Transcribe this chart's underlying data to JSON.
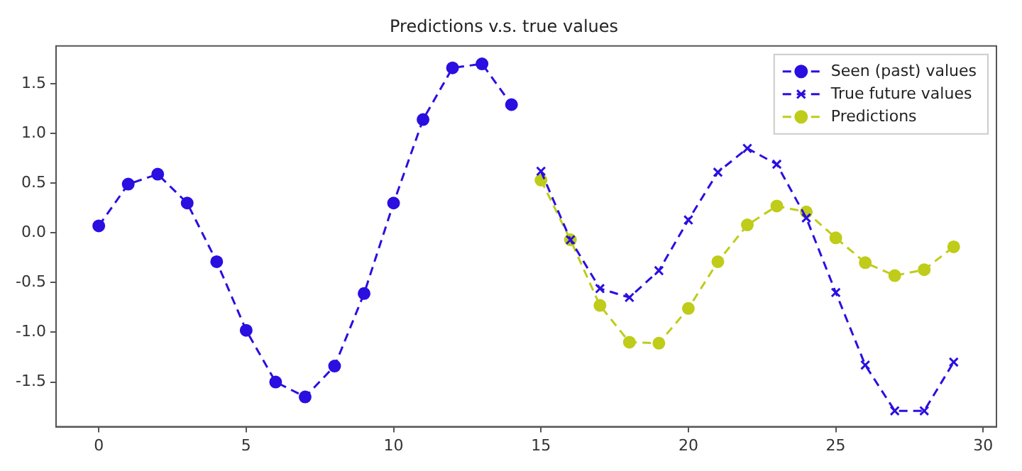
{
  "chart_data": {
    "type": "line",
    "title": "Predictions v.s. true values",
    "legend": "top right",
    "grid": false,
    "line_style": "dashed",
    "xlim": [
      -1.45,
      30.45
    ],
    "xticks": [
      0,
      5,
      10,
      15,
      20,
      25,
      30
    ],
    "ylim": [
      -1.95,
      1.88
    ],
    "yticks": [
      -1.5,
      {
        "value": -1,
        "label": "-1.0"
      },
      -0.5,
      {
        "value": 0,
        "label": "0.0"
      },
      0.5,
      {
        "value": 1,
        "label": "1.0"
      },
      1.5
    ],
    "series": [
      {
        "name": "Seen (past) values",
        "color": "#2a0fe0",
        "marker": "circle",
        "x": [
          0,
          1,
          2,
          3,
          4,
          5,
          6,
          7,
          8,
          9,
          10,
          11,
          12,
          13,
          14
        ],
        "values": [
          0.07,
          0.49,
          0.59,
          0.3,
          -0.29,
          -0.98,
          -1.5,
          -1.65,
          -1.34,
          -0.61,
          0.3,
          1.14,
          1.66,
          1.7,
          1.29
        ]
      },
      {
        "name": "True future values",
        "color": "#2a0fe0",
        "marker": "cross",
        "x": [
          15,
          16,
          17,
          18,
          19,
          20,
          21,
          22,
          23,
          24,
          25,
          26,
          27,
          28,
          29
        ],
        "values": [
          0.62,
          -0.07,
          -0.56,
          -0.65,
          -0.38,
          0.13,
          0.61,
          0.85,
          0.69,
          0.15,
          -0.6,
          -1.33,
          -1.79,
          -1.79,
          -1.3
        ]
      },
      {
        "name": "Predictions",
        "color": "#bfcc1a",
        "marker": "circle",
        "x": [
          15,
          16,
          17,
          18,
          19,
          20,
          21,
          22,
          23,
          24,
          25,
          26,
          27,
          28,
          29
        ],
        "values": [
          0.53,
          -0.07,
          -0.73,
          -1.1,
          -1.11,
          -0.76,
          -0.29,
          0.08,
          0.27,
          0.21,
          -0.05,
          -0.3,
          -0.43,
          -0.37,
          -0.14
        ]
      }
    ]
  }
}
